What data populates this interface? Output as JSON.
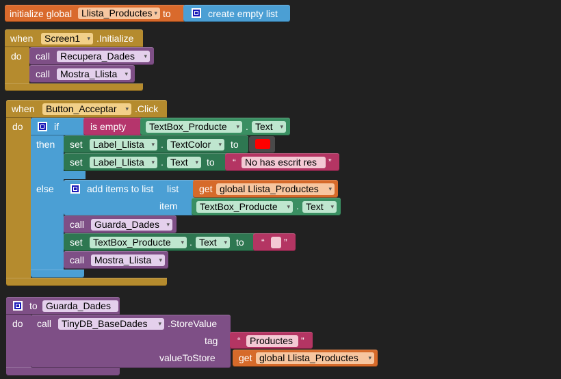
{
  "init_block": {
    "keyword": "initialize global",
    "var_name": "Llista_Productes",
    "to": "to",
    "create_empty_list": "create empty list"
  },
  "screen_init": {
    "when": "when",
    "component": "Screen1",
    "event": ".Initialize",
    "do": "do",
    "calls": [
      {
        "call": "call",
        "proc": "Recupera_Dades"
      },
      {
        "call": "call",
        "proc": "Mostra_Llista"
      }
    ]
  },
  "button_click": {
    "when": "when",
    "component": "Button_Acceptar",
    "event": ".Click",
    "do": "do",
    "if": "if",
    "is_empty": "is empty",
    "cond_component": "TextBox_Producte",
    "cond_dot": ".",
    "cond_prop": "Text",
    "then": "then",
    "else": "else",
    "then_set1": {
      "set": "set",
      "component": "Label_Llista",
      "dot": ".",
      "prop": "TextColor",
      "to": "to",
      "color": "#ff0000"
    },
    "then_set2": {
      "set": "set",
      "component": "Label_Llista",
      "dot": ".",
      "prop": "Text",
      "to": "to",
      "value": "No has escrit res"
    },
    "add_items": {
      "label": "add items to list",
      "list": "list",
      "item": "item",
      "get": "get",
      "list_var": "global Llista_Productes",
      "item_component": "TextBox_Producte",
      "item_dot": ".",
      "item_prop": "Text"
    },
    "call1": {
      "call": "call",
      "proc": "Guarda_Dades"
    },
    "set3": {
      "set": "set",
      "component": "TextBox_Producte",
      "dot": ".",
      "prop": "Text",
      "to": "to",
      "value": ""
    },
    "call2": {
      "call": "call",
      "proc": "Mostra_Llista"
    }
  },
  "proc_def": {
    "to": "to",
    "name": "Guarda_Dades",
    "do": "do",
    "call": "call",
    "component": "TinyDB_BaseDades",
    "method": ".StoreValue",
    "tag": "tag",
    "tag_value": "Productes",
    "value_to_store": "valueToStore",
    "get": "get",
    "var": "global Llista_Productes"
  },
  "quote_open": "“",
  "quote_close": "”",
  "dropdown_glyph": "▾"
}
